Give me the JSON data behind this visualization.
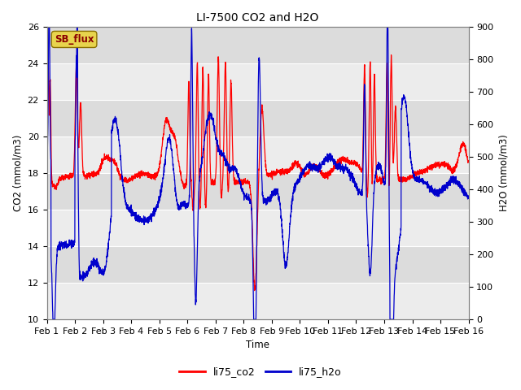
{
  "title": "LI-7500 CO2 and H2O",
  "xlabel": "Time",
  "ylabel_left": "CO2 (mmol/m3)",
  "ylabel_right": "H2O (mmol/m3)",
  "ylim_left": [
    10,
    26
  ],
  "ylim_right": [
    0,
    900
  ],
  "yticks_left": [
    10,
    12,
    14,
    16,
    18,
    20,
    22,
    24,
    26
  ],
  "yticks_right": [
    0,
    100,
    200,
    300,
    400,
    500,
    600,
    700,
    800,
    900
  ],
  "xtick_labels": [
    "Feb 1",
    "Feb 2",
    "Feb 3",
    "Feb 4",
    "Feb 5",
    "Feb 6",
    "Feb 7",
    "Feb 8",
    "Feb 9",
    "Feb 10",
    "Feb 11",
    "Feb 12",
    "Feb 13",
    "Feb 14",
    "Feb 15",
    "Feb 16"
  ],
  "co2_color": "#ff0000",
  "h2o_color": "#0000cc",
  "fig_facecolor": "#ffffff",
  "plot_facecolor": "#e8e8e8",
  "band_light": "#ececec",
  "band_dark": "#dcdcdc",
  "legend_label_co2": "li75_co2",
  "legend_label_h2o": "li75_h2o",
  "watermark_text": "SB_flux",
  "watermark_fg": "#8b0000",
  "watermark_bg": "#e8d44d",
  "watermark_border": "#8b7000"
}
